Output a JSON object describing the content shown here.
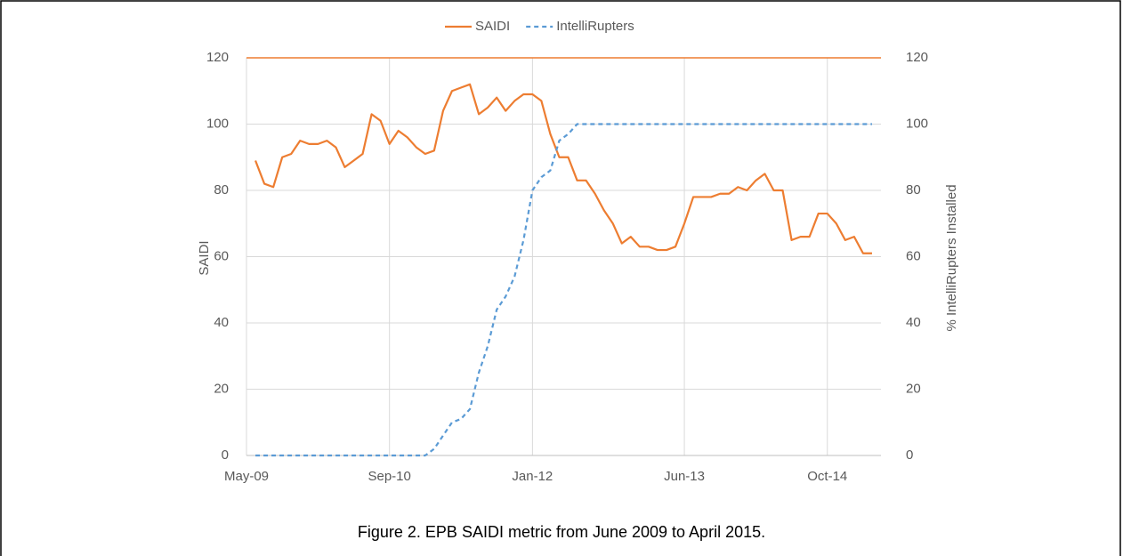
{
  "chart_data": {
    "type": "line",
    "caption": "Figure 2. EPB SAIDI metric from June 2009 to April 2015.",
    "y_label": "SAIDI",
    "y2_label": "% IntelliRupters Installed",
    "x": [
      "2009-06",
      "2009-07",
      "2009-08",
      "2009-09",
      "2009-10",
      "2009-11",
      "2009-12",
      "2010-01",
      "2010-02",
      "2010-03",
      "2010-04",
      "2010-05",
      "2010-06",
      "2010-07",
      "2010-08",
      "2010-09",
      "2010-10",
      "2010-11",
      "2010-12",
      "2011-01",
      "2011-02",
      "2011-03",
      "2011-04",
      "2011-05",
      "2011-06",
      "2011-07",
      "2011-08",
      "2011-09",
      "2011-10",
      "2011-11",
      "2011-12",
      "2012-01",
      "2012-02",
      "2012-03",
      "2012-04",
      "2012-05",
      "2012-06",
      "2012-07",
      "2012-08",
      "2012-09",
      "2012-10",
      "2012-11",
      "2012-12",
      "2013-01",
      "2013-02",
      "2013-03",
      "2013-04",
      "2013-05",
      "2013-06",
      "2013-07",
      "2013-08",
      "2013-09",
      "2013-10",
      "2013-11",
      "2013-12",
      "2014-01",
      "2014-02",
      "2014-03",
      "2014-04",
      "2014-05",
      "2014-06",
      "2014-07",
      "2014-08",
      "2014-09",
      "2014-10",
      "2014-11",
      "2014-12",
      "2015-01",
      "2015-02",
      "2015-03"
    ],
    "xlim": [
      "2009-05",
      "2015-04"
    ],
    "xticks": [
      {
        "value": "2009-05",
        "label": "May-09"
      },
      {
        "value": "2010-09",
        "label": "Sep-10"
      },
      {
        "value": "2012-01",
        "label": "Jan-12"
      },
      {
        "value": "2013-06",
        "label": "Jun-13"
      },
      {
        "value": "2014-10",
        "label": "Oct-14"
      }
    ],
    "ylim": [
      0,
      120
    ],
    "yticks": [
      0,
      20,
      40,
      60,
      80,
      100,
      120
    ],
    "y2lim": [
      0,
      120
    ],
    "y2ticks": [
      0,
      20,
      40,
      60,
      80,
      100,
      120
    ],
    "grid": true,
    "legend": "top",
    "series": [
      {
        "name": "SAIDI",
        "color": "#ed7d31",
        "dash": false,
        "values": [
          89,
          82,
          81,
          90,
          91,
          95,
          94,
          94,
          95,
          93,
          87,
          89,
          91,
          103,
          101,
          94,
          98,
          96,
          93,
          91,
          92,
          104,
          110,
          111,
          112,
          103,
          105,
          108,
          104,
          107,
          109,
          109,
          107,
          97,
          90,
          90,
          83,
          83,
          79,
          74,
          70,
          64,
          66,
          63,
          63,
          62,
          62,
          63,
          70,
          78,
          78,
          78,
          79,
          79,
          81,
          80,
          83,
          85,
          80,
          80,
          65,
          66,
          66,
          73,
          73,
          70,
          65,
          66,
          61,
          61
        ]
      },
      {
        "name": "IntelliRupters",
        "color": "#5b9bd5",
        "dash": true,
        "axis": "y2",
        "values": [
          0,
          0,
          0,
          0,
          0,
          0,
          0,
          0,
          0,
          0,
          0,
          0,
          0,
          0,
          0,
          0,
          0,
          0,
          0,
          0,
          2,
          6,
          10,
          11,
          14,
          25,
          33,
          44,
          48,
          54,
          65,
          80,
          84,
          86,
          95,
          97,
          100,
          100,
          100,
          100,
          100,
          100,
          100,
          100,
          100,
          100,
          100,
          100,
          100,
          100,
          100,
          100,
          100,
          100,
          100,
          100,
          100,
          100,
          100,
          100,
          100,
          100,
          100,
          100,
          100,
          100,
          100,
          100,
          100,
          100
        ]
      }
    ]
  }
}
